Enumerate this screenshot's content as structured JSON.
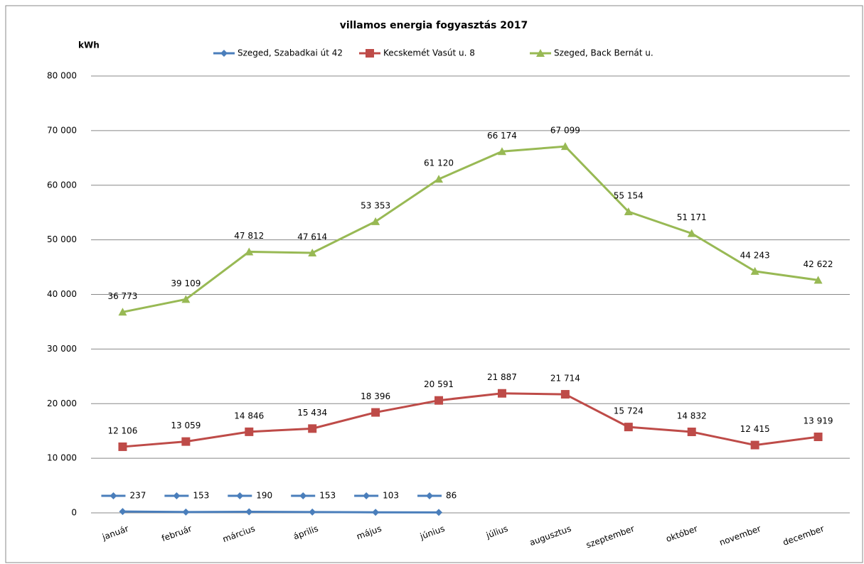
{
  "chart_data": {
    "type": "line",
    "title": "villamos energia fogyasztás 2017",
    "y_label": "kWh",
    "categories": [
      "január",
      "február",
      "március",
      "április",
      "május",
      "június",
      "július",
      "augusztus",
      "szeptember",
      "október",
      "november",
      "december"
    ],
    "series": [
      {
        "name": "Szeged, Szabadkai út 42",
        "color": "#4a7ebb",
        "marker": "diamond",
        "values": [
          237,
          153,
          190,
          153,
          103,
          86,
          null,
          null,
          null,
          null,
          null,
          null
        ],
        "value_labels": [
          "237",
          "153",
          "190",
          "153",
          "103",
          "86",
          null,
          null,
          null,
          null,
          null,
          null
        ]
      },
      {
        "name": "Kecskemét Vasút u. 8",
        "color": "#be4b48",
        "marker": "square",
        "values": [
          12106,
          13059,
          14846,
          15434,
          18396,
          20591,
          21887,
          21714,
          15724,
          14832,
          12415,
          13919
        ],
        "value_labels": [
          "12 106",
          "13 059",
          "14 846",
          "15 434",
          "18 396",
          "20 591",
          "21 887",
          "21 714",
          "15 724",
          "14 832",
          "12 415",
          "13 919"
        ]
      },
      {
        "name": "Szeged, Back Bernát u.",
        "color": "#98b954",
        "marker": "triangle",
        "values": [
          36773,
          39109,
          47812,
          47614,
          53353,
          61120,
          66174,
          67099,
          55154,
          51171,
          44243,
          42622
        ],
        "value_labels": [
          "36 773",
          "39 109",
          "47 812",
          "47 614",
          "53 353",
          "61 120",
          "66 174",
          "67 099",
          "55 154",
          "51 171",
          "44 243",
          "42 622"
        ]
      }
    ],
    "ylim": [
      0,
      80000
    ],
    "yticks": [
      0,
      {
        "value": 10000,
        "label": "10 000"
      },
      {
        "value": 20000,
        "label": "20 000"
      },
      {
        "value": 30000,
        "label": "30 000"
      },
      {
        "value": 40000,
        "label": "40 000"
      },
      {
        "value": 50000,
        "label": "50 000"
      },
      {
        "value": 60000,
        "label": "60 000"
      },
      {
        "value": 70000,
        "label": "70 000"
      },
      {
        "value": 80000,
        "label": "80 000"
      }
    ],
    "grid": true,
    "legend": "top"
  }
}
